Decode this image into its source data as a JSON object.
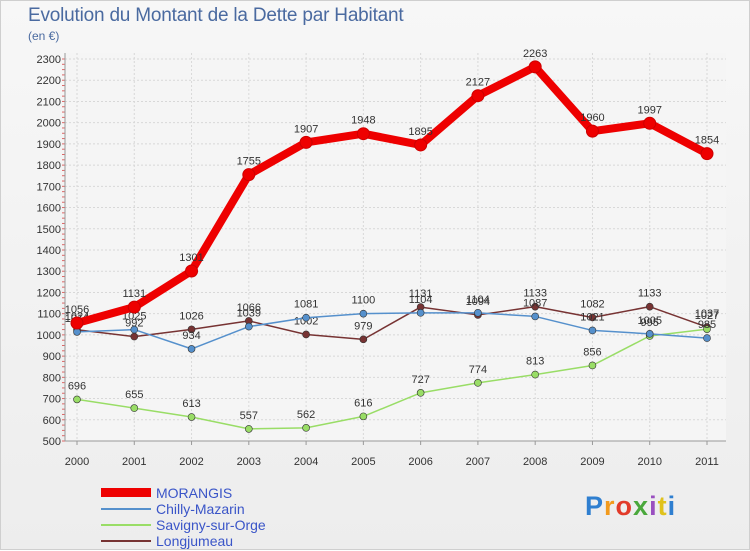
{
  "header": {
    "title": "Evolution du Montant de la Dette par Habitant",
    "subtitle": "(en €)"
  },
  "brand": {
    "letters": [
      "P",
      "r",
      "o",
      "x",
      "i",
      "t",
      "i"
    ]
  },
  "chart_data": {
    "type": "line",
    "title": "Evolution du Montant de la Dette par Habitant",
    "subtitle": "(en €)",
    "xlabel": "",
    "ylabel": "",
    "x": [
      "2000",
      "2001",
      "2002",
      "2003",
      "2004",
      "2005",
      "2006",
      "2007",
      "2008",
      "2009",
      "2010",
      "2011"
    ],
    "yticks": [
      500,
      600,
      700,
      800,
      900,
      1000,
      1100,
      1200,
      1300,
      1400,
      1500,
      1600,
      1700,
      1800,
      1900,
      2000,
      2100,
      2200,
      2300
    ],
    "ylim": [
      500,
      2300
    ],
    "grid": true,
    "legend_position": "bottom-left",
    "series": [
      {
        "name": "MORANGIS",
        "color": "#ee0000",
        "values": [
          1056,
          1131,
          1301,
          1755,
          1907,
          1948,
          1895,
          2127,
          2263,
          1960,
          1997,
          1854
        ],
        "labels": [
          "1056",
          "1131",
          "1301",
          "1755",
          "1907",
          "1948",
          "1895",
          "2127",
          "2263",
          "1960",
          "1997",
          "1854"
        ]
      },
      {
        "name": "Chilly-Mazarin",
        "color": "#5590cc",
        "values": [
          1014,
          1025,
          934,
          1039,
          1081,
          1100,
          1104,
          1104,
          1087,
          1021,
          1005,
          985
        ],
        "labels": [
          "1014",
          "1025",
          "934",
          "1039",
          "1081",
          "1100",
          "1104",
          "1104",
          "1087",
          "1021",
          "1005",
          "985"
        ]
      },
      {
        "name": "Savigny-sur-Orge",
        "color": "#99dd66",
        "values": [
          696,
          655,
          613,
          557,
          562,
          616,
          727,
          774,
          813,
          856,
          995,
          1027
        ],
        "labels": [
          "696",
          "655",
          "613",
          "557",
          "562",
          "616",
          "727",
          "774",
          "813",
          "856",
          "995",
          "1027"
        ]
      },
      {
        "name": "Longjumeau",
        "color": "#773333",
        "values": [
          1024,
          992,
          1026,
          1066,
          1002,
          979,
          1131,
          1094,
          1133,
          1082,
          1133,
          1037
        ],
        "labels": [
          "1024",
          "992",
          "1026",
          "1066",
          "1002",
          "979",
          "1131",
          "1094",
          "1133",
          "1082",
          "1133",
          "1037"
        ]
      }
    ]
  }
}
